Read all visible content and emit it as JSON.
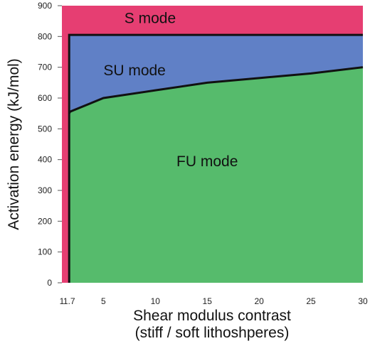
{
  "chart_data": {
    "type": "area",
    "xlabel": "Shear modulus contrast",
    "xlabel_sub": "(stiff / soft lithoshperes)",
    "ylabel": "Activation energy (kJ/mol)",
    "xlim": [
      1,
      30
    ],
    "ylim": [
      0,
      900
    ],
    "x_ticks": [
      {
        "value": 1,
        "label": "1"
      },
      {
        "value": 1.7,
        "label": "1.7"
      },
      {
        "value": 5,
        "label": "5"
      },
      {
        "value": 10,
        "label": "10"
      },
      {
        "value": 15,
        "label": "15"
      },
      {
        "value": 20,
        "label": "20"
      },
      {
        "value": 25,
        "label": "25"
      },
      {
        "value": 30,
        "label": "30"
      }
    ],
    "y_ticks": [
      {
        "value": 0,
        "label": "0"
      },
      {
        "value": 100,
        "label": "100"
      },
      {
        "value": 200,
        "label": "200"
      },
      {
        "value": 300,
        "label": "300"
      },
      {
        "value": 400,
        "label": "400"
      },
      {
        "value": 500,
        "label": "500"
      },
      {
        "value": 600,
        "label": "600"
      },
      {
        "value": 700,
        "label": "700"
      },
      {
        "value": 800,
        "label": "800"
      },
      {
        "value": 900,
        "label": "900"
      }
    ],
    "grid": false,
    "boundaries": {
      "s_su_boundary": {
        "x": [
          1.7,
          1.7,
          30
        ],
        "y": [
          0,
          805,
          805
        ]
      },
      "su_fu_boundary": {
        "x": [
          1.7,
          1.8,
          5,
          10,
          15,
          20,
          25,
          30
        ],
        "y": [
          550,
          556,
          600,
          625,
          650,
          665,
          680,
          700
        ]
      }
    },
    "regions": [
      {
        "name": "S mode",
        "color": "#e63e72",
        "label_at": [
          9.5,
          860
        ]
      },
      {
        "name": "SU mode",
        "color": "#6080c6",
        "label_at": [
          8,
          690
        ]
      },
      {
        "name": "FU mode",
        "color": "#56bb6c",
        "label_at": [
          15,
          395
        ]
      }
    ]
  }
}
